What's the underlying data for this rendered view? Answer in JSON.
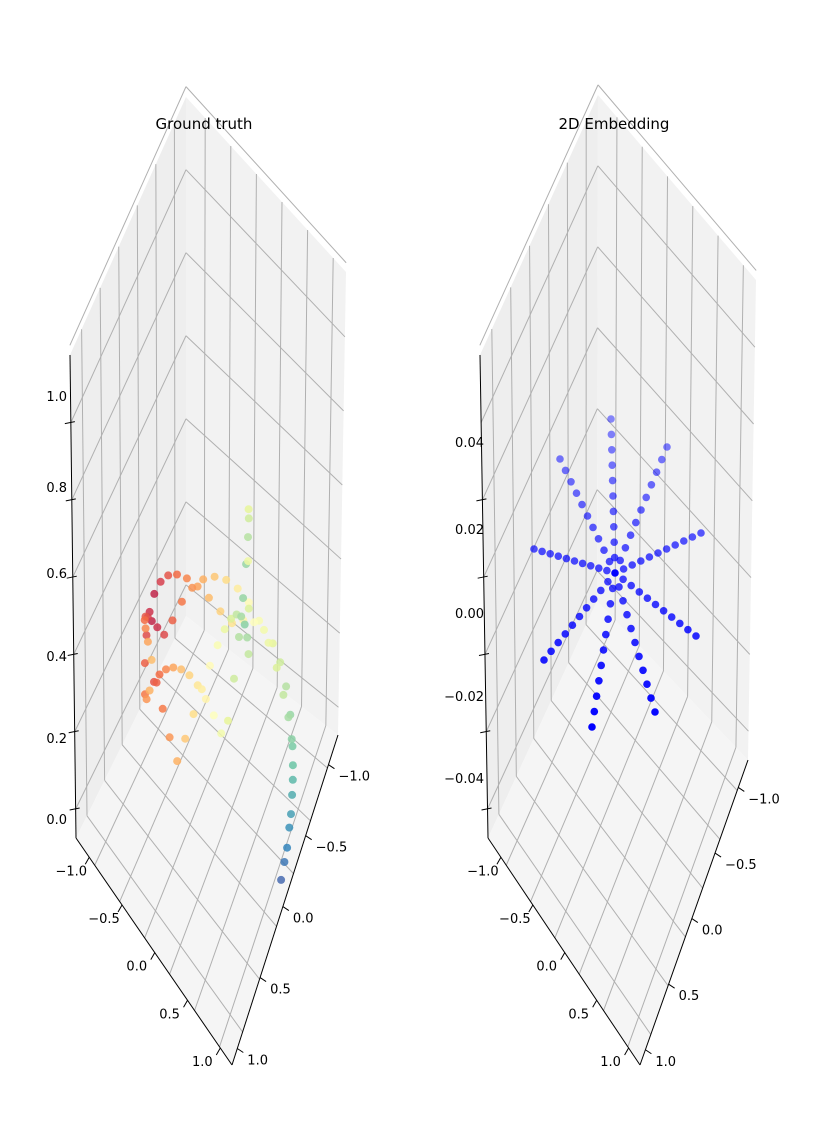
{
  "chart_data": [
    {
      "type": "scatter",
      "title": "Ground truth",
      "z_ticks": [
        "0.0",
        "0.2",
        "0.4",
        "0.6",
        "0.8",
        "1.0"
      ],
      "left_ticks": [
        "−1.0",
        "−0.5",
        "0.0",
        "0.5",
        "1.0"
      ],
      "right_ticks": [
        "−1.0",
        "−0.5",
        "0.0",
        "0.5",
        "1.0"
      ],
      "xlim": [
        -1,
        1
      ],
      "ylim": [
        -1,
        1
      ],
      "zlim": [
        0,
        1
      ],
      "colormap": "Spectral",
      "grid": true,
      "description": "Swiss-roll style sample, colored by position along the spiral"
    },
    {
      "type": "scatter",
      "title": "2D Embedding",
      "z_ticks": [
        "−0.04",
        "−0.02",
        "0.00",
        "0.02",
        "0.04"
      ],
      "left_ticks": [
        "−1.0",
        "−0.5",
        "0.0",
        "0.5",
        "1.0"
      ],
      "right_ticks": [
        "−1.0",
        "−0.5",
        "0.0",
        "0.5",
        "1.0"
      ],
      "xlim": [
        -1,
        1
      ],
      "ylim": [
        -1,
        1
      ],
      "zlim": [
        -0.05,
        0.05
      ],
      "color": "#0000ff",
      "grid": true,
      "arms": 8,
      "points_per_arm": 10
    }
  ]
}
